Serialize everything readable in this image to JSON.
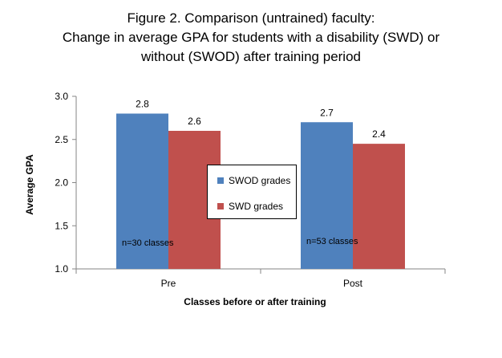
{
  "chart_data": {
    "type": "bar",
    "title_lines": [
      "Figure 2. Comparison (untrained) faculty:",
      "Change in average GPA for students with a disability (SWD) or",
      "without (SWOD) after training period"
    ],
    "xlabel": "Classes before or after training",
    "ylabel": "Average GPA",
    "categories": [
      "Pre",
      "Post"
    ],
    "series": [
      {
        "name": "SWOD grades",
        "values": [
          2.8,
          2.7
        ],
        "labels": [
          "2.8",
          "2.7"
        ],
        "color": "#4f81bd"
      },
      {
        "name": "SWD grades",
        "values": [
          2.6,
          2.45
        ],
        "labels": [
          "2.6",
          "2.4"
        ],
        "color": "#c0504d"
      }
    ],
    "ylim": [
      1.0,
      3.0
    ],
    "yticks": [
      "1.0",
      "1.5",
      "2.0",
      "2.5",
      "3.0"
    ],
    "annotations": [
      "n=30 classes",
      "n=53 classes"
    ],
    "grid": false,
    "legend_position": "center"
  }
}
